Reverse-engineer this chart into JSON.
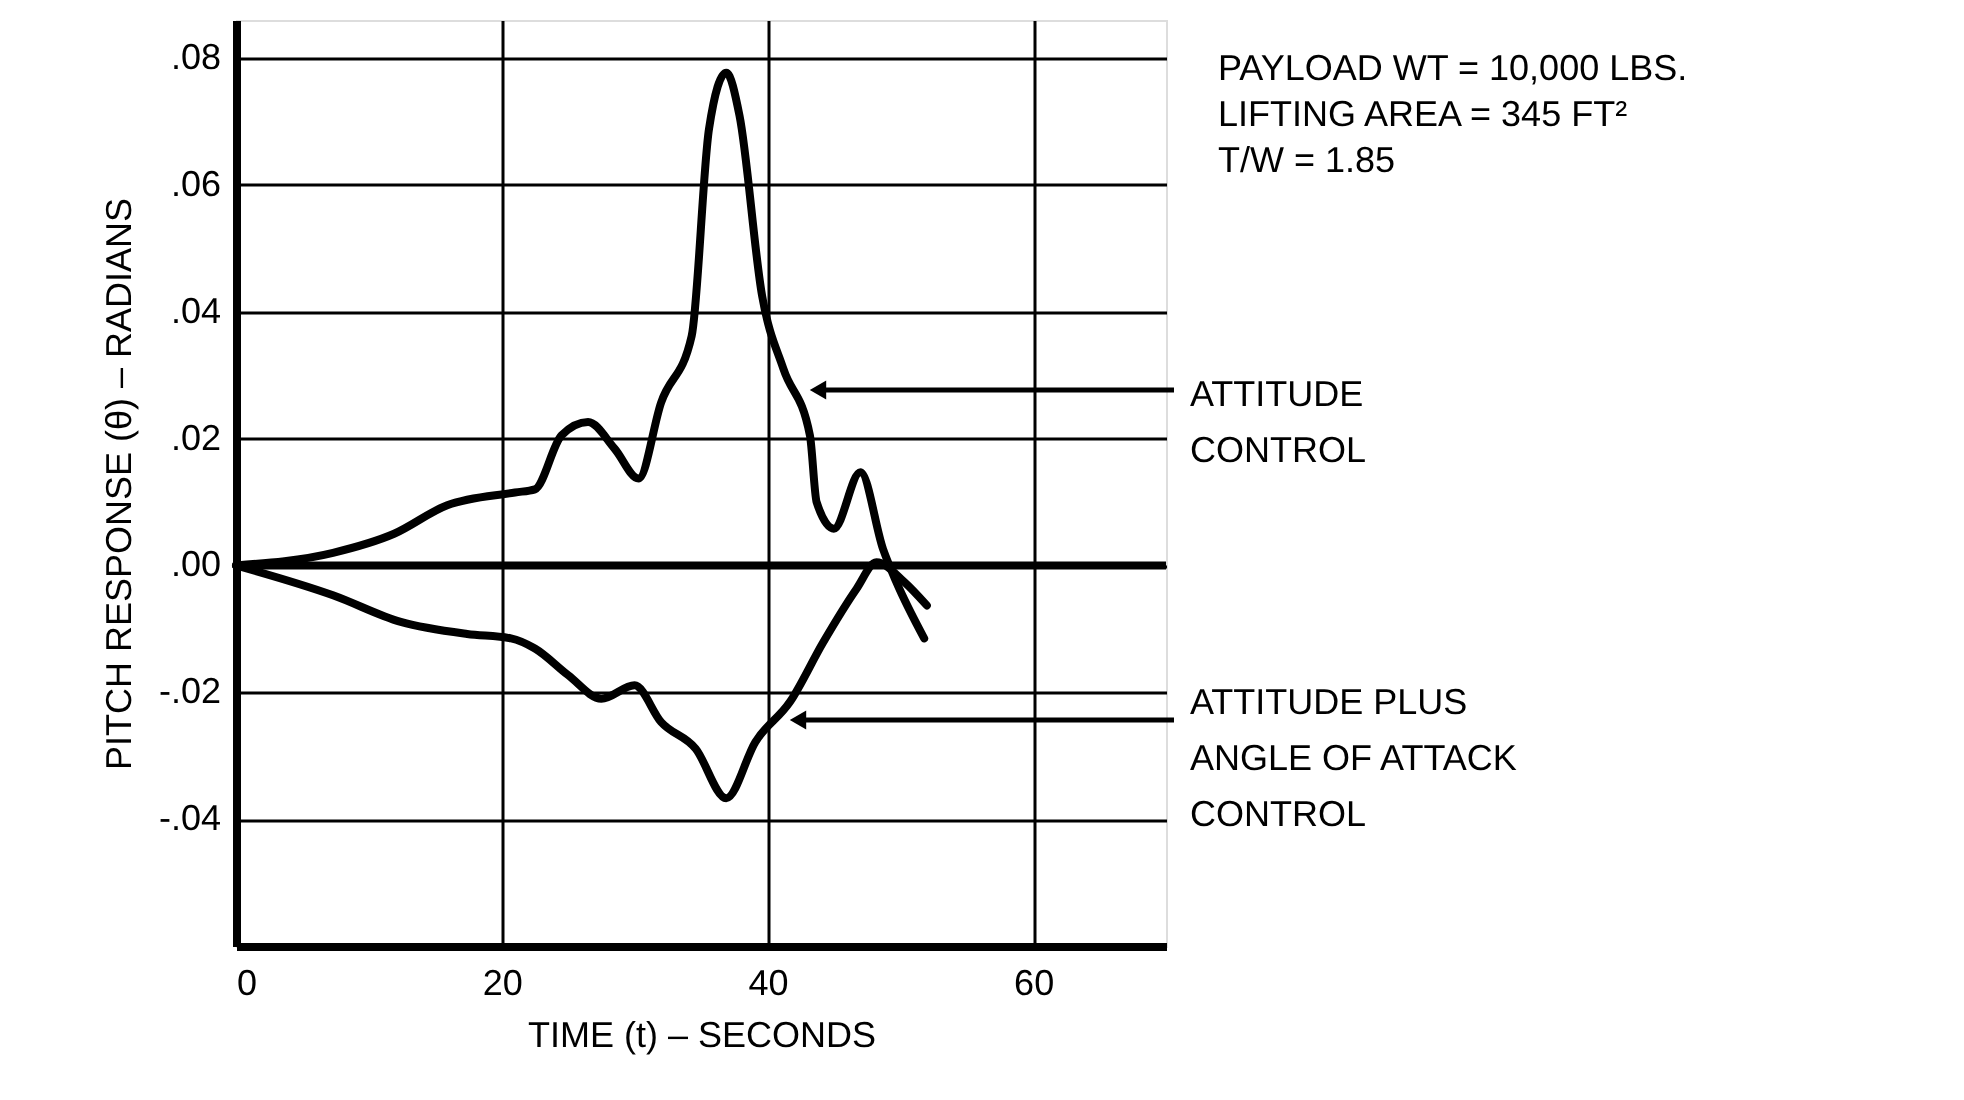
{
  "chart_data": {
    "type": "line",
    "xlabel": "TIME (t) – SECONDS",
    "ylabel": "PITCH RESPONSE (θ) – RADIANS",
    "annotations": [
      "PAYLOAD WT = 10,000 LBS.",
      "LIFTING AREA = 345 FT²",
      "T/W = 1.85"
    ],
    "xlim": [
      0,
      70
    ],
    "xticks": [
      0,
      20,
      40,
      60
    ],
    "ylim": [
      -0.06,
      0.086
    ],
    "yticks": [
      {
        "value": 0.08,
        "label": ".08"
      },
      {
        "value": 0.06,
        "label": ".06"
      },
      {
        "value": 0.04,
        "label": ".04"
      },
      {
        "value": 0.02,
        "label": ".02"
      },
      {
        "value": 0,
        "label": ".00"
      },
      {
        "value": -0.02,
        "label": "-.02"
      },
      {
        "value": -0.04,
        "label": "-.04"
      }
    ],
    "grid": true,
    "line_style": "solid",
    "marker": "none",
    "ref_lines": [
      {
        "axis": "y",
        "value": 0
      }
    ],
    "series": [
      {
        "name": "ATTITUDE CONTROL",
        "color": "#000000",
        "x": [
          0,
          7.3,
          11.9,
          15.9,
          21,
          22.5,
          24.5,
          26.5,
          28.5,
          30.3,
          32,
          34.3,
          35.6,
          36.9,
          37.9,
          39.6,
          41.2,
          43.2,
          43.7,
          45,
          47,
          48.7,
          49.7,
          51.8
        ],
        "values": [
          0,
          0.002,
          0.005,
          0.0095,
          0.0115,
          0.012,
          0.0205,
          0.0226,
          0.0184,
          0.0137,
          0.0257,
          0.0362,
          0.0688,
          0.0777,
          0.0709,
          0.0425,
          0.031,
          0.0205,
          0.01,
          0.0058,
          0.0147,
          0.0026,
          -0.0026,
          -0.0115
        ]
      },
      {
        "name": "ATTITUDE PLUS ANGLE OF ATTACK CONTROL",
        "color": "#000000",
        "x": [
          0,
          7.3,
          12.4,
          17.4,
          20.7,
          22.5,
          25,
          27.5,
          30,
          32,
          34.6,
          36.9,
          39.1,
          41.7,
          44.2,
          46.7,
          48.2,
          50.3,
          52
        ],
        "values": [
          0,
          -0.0047,
          -0.0089,
          -0.0108,
          -0.0115,
          -0.0131,
          -0.0173,
          -0.021,
          -0.0189,
          -0.0247,
          -0.0289,
          -0.0367,
          -0.0278,
          -0.0215,
          -0.0121,
          -0.0037,
          0.0005,
          -0.0026,
          -0.0063
        ]
      }
    ]
  }
}
